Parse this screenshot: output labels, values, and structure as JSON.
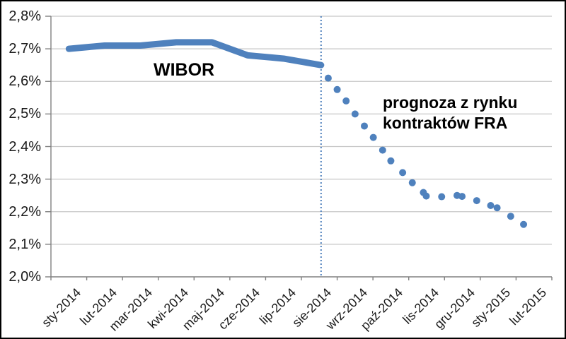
{
  "chart_data": {
    "type": "line",
    "title": "",
    "xlabel": "",
    "ylabel": "",
    "ylim": [
      2.0,
      2.8
    ],
    "grid": "horizontal",
    "legend_position": "none",
    "categories": [
      "sty-2014",
      "lut-2014",
      "mar-2014",
      "kwi-2014",
      "maj-2014",
      "cze-2014",
      "lip-2014",
      "sie-2014",
      "wrz-2014",
      "paź-2014",
      "lis-2014",
      "gru-2014",
      "sty-2015",
      "lut-2015"
    ],
    "y_axis": {
      "step": 0.1,
      "tick_labels_top_to_bottom": [
        "2,8%",
        "2,7%",
        "2,6%",
        "2,5%",
        "2,4%",
        "2,3%",
        "2,2%",
        "2,1%",
        "2,0%"
      ]
    },
    "series": [
      {
        "name": "WIBOR",
        "type": "line",
        "x_month": [
          0.5,
          1.5,
          2.5,
          3.5,
          4.5,
          5.5,
          6.5,
          7.55
        ],
        "values": [
          2.7,
          2.71,
          2.71,
          2.72,
          2.72,
          2.68,
          2.67,
          2.65
        ]
      },
      {
        "name": "prognoza z rynku kontraktów FRA",
        "type": "scatter",
        "points_month_value": [
          [
            7.75,
            2.61
          ],
          [
            8.0,
            2.575
          ],
          [
            8.25,
            2.54
          ],
          [
            8.5,
            2.5
          ],
          [
            8.76,
            2.463
          ],
          [
            9.01,
            2.428
          ],
          [
            9.27,
            2.389
          ],
          [
            9.5,
            2.356
          ],
          [
            9.83,
            2.32
          ],
          [
            10.1,
            2.289
          ],
          [
            10.41,
            2.259
          ],
          [
            10.49,
            2.248
          ],
          [
            10.92,
            2.246
          ],
          [
            11.35,
            2.25
          ],
          [
            11.49,
            2.247
          ],
          [
            11.9,
            2.234
          ],
          [
            12.29,
            2.219
          ],
          [
            12.47,
            2.212
          ],
          [
            12.85,
            2.186
          ],
          [
            13.21,
            2.161
          ]
        ]
      }
    ],
    "divider": {
      "x_month": 7.55,
      "style": "dotted"
    },
    "annotations": {
      "wibor_label": "WIBOR",
      "forecast_label_line1": "prognoza z rynku",
      "forecast_label_line2": "kontraktów FRA"
    }
  },
  "colors": {
    "series_blue": "#4F81BD",
    "gridline": "#C6C6C6",
    "axis": "#808080",
    "label_text": "#1A1A1A",
    "annotation_text": "#000000",
    "background": "#FFFFFF",
    "border": "#000000"
  }
}
